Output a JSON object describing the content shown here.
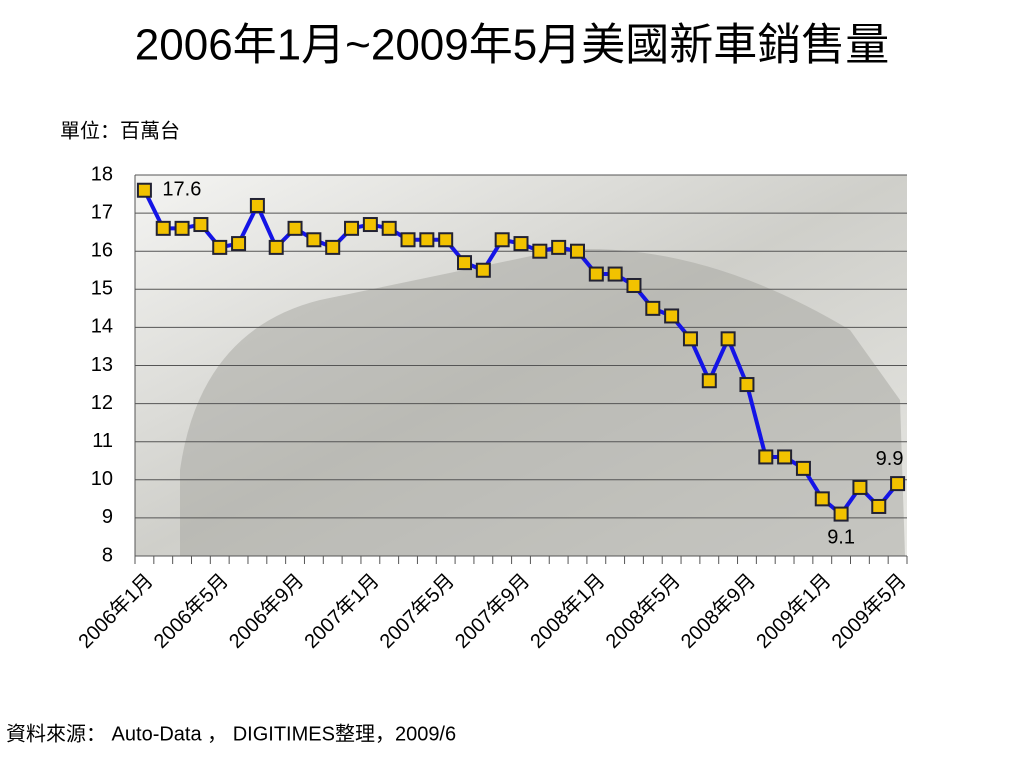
{
  "chart_data": {
    "type": "line",
    "title": "2006年1月~2009年5月美國新車銷售量",
    "unit_label": "單位：百萬台",
    "source": "資料來源： Auto-Data ， DIGITIMES整理，2009/6",
    "categories": [
      "2006年1月",
      null,
      null,
      null,
      "2006年5月",
      null,
      null,
      null,
      "2006年9月",
      null,
      null,
      null,
      "2007年1月",
      null,
      null,
      null,
      "2007年5月",
      null,
      null,
      null,
      "2007年9月",
      null,
      null,
      null,
      "2008年1月",
      null,
      null,
      null,
      "2008年5月",
      null,
      null,
      null,
      "2008年9月",
      null,
      null,
      null,
      "2009年1月",
      null,
      null,
      null,
      "2009年5月"
    ],
    "values": [
      17.6,
      16.6,
      16.6,
      16.7,
      16.1,
      16.2,
      17.2,
      16.1,
      16.6,
      16.3,
      16.1,
      16.6,
      16.7,
      16.6,
      16.3,
      16.3,
      16.3,
      15.7,
      15.5,
      16.3,
      16.2,
      16.0,
      16.1,
      16.0,
      15.4,
      15.4,
      15.1,
      14.5,
      14.3,
      13.7,
      12.6,
      13.7,
      12.5,
      10.6,
      10.6,
      10.3,
      9.5,
      9.1,
      9.8,
      9.3,
      9.9
    ],
    "value_labels": [
      "17.6",
      null,
      null,
      null,
      null,
      null,
      null,
      null,
      null,
      null,
      null,
      null,
      null,
      null,
      null,
      null,
      null,
      null,
      null,
      null,
      null,
      null,
      null,
      null,
      null,
      null,
      null,
      null,
      null,
      null,
      null,
      null,
      null,
      null,
      null,
      null,
      null,
      "9.1",
      null,
      null,
      "9.9"
    ],
    "color": "#1414e6",
    "marker_color": "#f2c200",
    "ylim": [
      8,
      18
    ],
    "yticks": [
      8,
      9,
      10,
      11,
      12,
      13,
      14,
      15,
      16,
      17,
      18
    ],
    "grid": true
  }
}
